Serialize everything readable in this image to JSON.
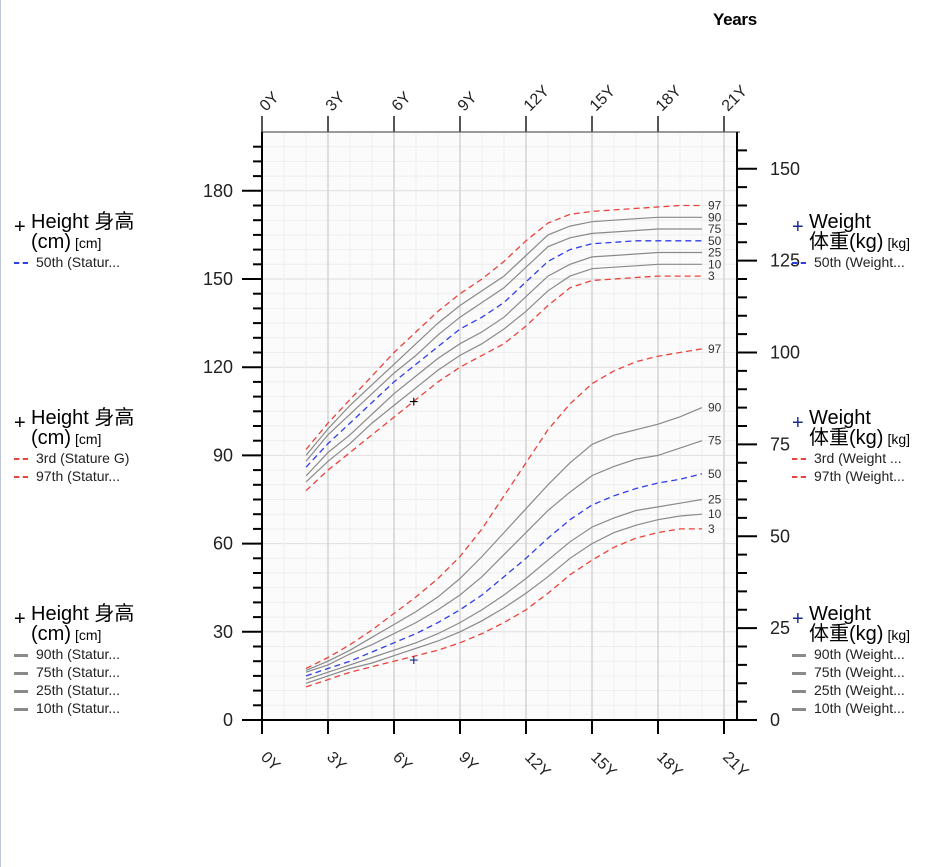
{
  "header": {
    "years_label": "Years"
  },
  "legends": {
    "left": [
      {
        "plus": "+",
        "title1": "Height 身高",
        "title2": "(cm)",
        "unit": "[cm]",
        "items": [
          {
            "label": "50th (Statur...",
            "style": "blue"
          }
        ]
      },
      {
        "plus": "+",
        "title1": "Height 身高",
        "title2": "(cm)",
        "unit": "[cm]",
        "items": [
          {
            "label": "3rd (Stature G)",
            "style": "red"
          },
          {
            "label": "97th (Statur...",
            "style": "red"
          }
        ]
      },
      {
        "plus": "+",
        "title1": "Height 身高",
        "title2": "(cm)",
        "unit": "[cm]",
        "items": [
          {
            "label": "90th (Statur...",
            "style": "grey"
          },
          {
            "label": "75th (Statur...",
            "style": "grey"
          },
          {
            "label": "25th (Statur...",
            "style": "grey"
          },
          {
            "label": "10th (Statur...",
            "style": "grey"
          }
        ]
      }
    ],
    "right": [
      {
        "plus": "+",
        "title1": "Weight",
        "title2": "体重(kg)",
        "unit": "[kg]",
        "items": [
          {
            "label": "50th (Weight...",
            "style": "blue"
          }
        ]
      },
      {
        "plus": "+",
        "title1": "Weight",
        "title2": "体重(kg)",
        "unit": "[kg]",
        "items": [
          {
            "label": "3rd (Weight ...",
            "style": "red"
          },
          {
            "label": "97th (Weight...",
            "style": "red"
          }
        ]
      },
      {
        "plus": "+",
        "title1": "Weight",
        "title2": "体重(kg)",
        "unit": "[kg]",
        "items": [
          {
            "label": "90th (Weight...",
            "style": "grey"
          },
          {
            "label": "75th (Weight...",
            "style": "grey"
          },
          {
            "label": "25th (Weight...",
            "style": "grey"
          },
          {
            "label": "10th (Weight...",
            "style": "grey"
          }
        ]
      }
    ]
  },
  "colors": {
    "red": "#e8443a",
    "blue": "#2f3ee6",
    "grey": "#8a8a8a",
    "grid": "#e6e6e6",
    "axis": "#000000"
  },
  "chart_data": {
    "type": "line",
    "x_axis": {
      "ticks": [
        "0Y",
        "3Y",
        "6Y",
        "9Y",
        "12Y",
        "15Y",
        "18Y",
        "21Y"
      ],
      "tick_values": [
        0,
        3,
        6,
        9,
        12,
        15,
        18,
        21
      ],
      "range": [
        0,
        21.6
      ]
    },
    "y_left": {
      "label": "Height (cm)",
      "range": [
        0,
        200
      ],
      "ticks": [
        0,
        30,
        60,
        90,
        120,
        150,
        180
      ]
    },
    "y_right": {
      "label": "Weight (kg)",
      "range": [
        0,
        160
      ],
      "ticks": [
        0,
        25,
        50,
        75,
        100,
        125,
        150
      ]
    },
    "height_series": [
      {
        "name": "3rd",
        "style": "red",
        "x": [
          2,
          3,
          4,
          5,
          6,
          7,
          8,
          9,
          10,
          11,
          12,
          13,
          14,
          15,
          16,
          17,
          18,
          19,
          20
        ],
        "y": [
          78,
          85,
          91,
          97,
          103,
          109,
          115,
          120,
          124,
          128,
          134,
          141,
          147,
          149.5,
          150,
          150.5,
          151,
          151,
          151
        ]
      },
      {
        "name": "10th",
        "style": "grey",
        "x": [
          2,
          3,
          4,
          5,
          6,
          7,
          8,
          9,
          10,
          11,
          12,
          13,
          14,
          15,
          16,
          17,
          18,
          19,
          20
        ],
        "y": [
          81,
          88,
          94,
          101,
          107,
          113,
          119,
          124,
          128,
          133,
          139,
          146,
          151,
          153.5,
          154,
          154.5,
          155,
          155,
          155
        ]
      },
      {
        "name": "25th",
        "style": "grey",
        "x": [
          2,
          3,
          4,
          5,
          6,
          7,
          8,
          9,
          10,
          11,
          12,
          13,
          14,
          15,
          16,
          17,
          18,
          19,
          20
        ],
        "y": [
          83,
          91,
          97,
          104,
          111,
          117,
          123,
          128,
          132,
          137,
          144,
          151,
          155,
          157.5,
          158,
          158.5,
          159,
          159,
          159
        ]
      },
      {
        "name": "50th",
        "style": "blue",
        "x": [
          2,
          3,
          4,
          5,
          6,
          7,
          8,
          9,
          10,
          11,
          12,
          13,
          14,
          15,
          16,
          17,
          18,
          19,
          20
        ],
        "y": [
          86,
          94,
          101,
          108,
          115,
          121,
          127,
          133,
          137,
          142,
          149,
          156,
          160,
          162,
          162.5,
          163,
          163,
          163,
          163
        ]
      },
      {
        "name": "75th",
        "style": "grey",
        "x": [
          2,
          3,
          4,
          5,
          6,
          7,
          8,
          9,
          10,
          11,
          12,
          13,
          14,
          15,
          16,
          17,
          18,
          19,
          20
        ],
        "y": [
          88,
          97,
          104,
          111,
          118,
          124,
          131,
          137,
          142,
          147,
          154,
          161,
          164,
          165.5,
          166,
          166.5,
          167,
          167,
          167
        ]
      },
      {
        "name": "90th",
        "style": "grey",
        "x": [
          2,
          3,
          4,
          5,
          6,
          7,
          8,
          9,
          10,
          11,
          12,
          13,
          14,
          15,
          16,
          17,
          18,
          19,
          20
        ],
        "y": [
          90,
          99,
          107,
          114,
          121,
          128,
          135,
          141,
          146,
          151,
          158,
          165,
          168,
          169.5,
          170,
          170.5,
          171,
          171,
          171
        ]
      },
      {
        "name": "97th",
        "style": "red",
        "x": [
          2,
          3,
          4,
          5,
          6,
          7,
          8,
          9,
          10,
          11,
          12,
          13,
          14,
          15,
          16,
          17,
          18,
          19,
          20
        ],
        "y": [
          92,
          101,
          109,
          117,
          125,
          132,
          139,
          145,
          150,
          156,
          163,
          169,
          172,
          173,
          173.5,
          174,
          174.5,
          175,
          175
        ]
      }
    ],
    "height_end_labels": [
      "97",
      "90",
      "75",
      "50",
      "25",
      "10",
      "3"
    ],
    "weight_series": [
      {
        "name": "3rd",
        "style": "red",
        "x": [
          2,
          3,
          4,
          5,
          6,
          7,
          8,
          9,
          10,
          11,
          12,
          13,
          14,
          15,
          16,
          17,
          18,
          19,
          20
        ],
        "y": [
          9,
          11,
          13,
          14.5,
          16,
          17.5,
          19,
          21,
          23.5,
          26.5,
          30,
          34.5,
          39.5,
          43.5,
          47,
          49.5,
          51,
          52,
          52
        ]
      },
      {
        "name": "10th",
        "style": "grey",
        "x": [
          2,
          3,
          4,
          5,
          6,
          7,
          8,
          9,
          10,
          11,
          12,
          13,
          14,
          15,
          16,
          17,
          18,
          19,
          20
        ],
        "y": [
          10,
          12,
          14,
          15.5,
          17.5,
          19.5,
          21.5,
          24,
          27,
          30.5,
          34.5,
          39,
          44,
          48,
          51,
          53,
          54.5,
          55.5,
          56
        ]
      },
      {
        "name": "25th",
        "style": "grey",
        "x": [
          2,
          3,
          4,
          5,
          6,
          7,
          8,
          9,
          10,
          11,
          12,
          13,
          14,
          15,
          16,
          17,
          18,
          19,
          20
        ],
        "y": [
          11,
          13,
          15,
          17,
          19,
          21,
          23.5,
          26.5,
          30,
          34,
          38.5,
          43.5,
          48.5,
          52.5,
          55,
          57,
          58,
          59,
          60
        ]
      },
      {
        "name": "50th",
        "style": "blue",
        "x": [
          2,
          3,
          4,
          5,
          6,
          7,
          8,
          9,
          10,
          11,
          12,
          13,
          14,
          15,
          16,
          17,
          18,
          19,
          20
        ],
        "y": [
          12,
          14,
          16,
          18.5,
          21,
          23.5,
          26.5,
          30,
          34,
          39,
          44,
          49.5,
          54.5,
          58.5,
          61,
          63,
          64.5,
          65.5,
          67
        ]
      },
      {
        "name": "75th",
        "style": "grey",
        "x": [
          2,
          3,
          4,
          5,
          6,
          7,
          8,
          9,
          10,
          11,
          12,
          13,
          14,
          15,
          16,
          17,
          18,
          19,
          20
        ],
        "y": [
          13,
          15,
          18,
          20.5,
          23.5,
          26.5,
          30,
          34,
          39,
          45,
          51,
          57,
          62,
          66.5,
          69,
          71,
          72,
          74,
          76
        ]
      },
      {
        "name": "90th",
        "style": "grey",
        "x": [
          2,
          3,
          4,
          5,
          6,
          7,
          8,
          9,
          10,
          11,
          12,
          13,
          14,
          15,
          16,
          17,
          18,
          19,
          20
        ],
        "y": [
          13.5,
          16,
          19,
          22.5,
          26,
          29.5,
          33.5,
          38.5,
          44.5,
          51,
          57.5,
          64,
          70,
          75,
          77.5,
          79,
          80.5,
          82.5,
          85
        ]
      },
      {
        "name": "97th",
        "style": "red",
        "x": [
          2,
          3,
          4,
          5,
          6,
          7,
          8,
          9,
          10,
          11,
          12,
          13,
          14,
          15,
          16,
          17,
          18,
          19,
          20
        ],
        "y": [
          14,
          17,
          20.5,
          24.5,
          29,
          33.5,
          38.5,
          44.5,
          52,
          61,
          70,
          79,
          86,
          91.5,
          95,
          97.5,
          99,
          100,
          101
        ]
      }
    ],
    "weight_end_labels": [
      "97",
      "90",
      "75",
      "50",
      "25",
      "10",
      "3"
    ],
    "measurement_marks": [
      {
        "axis": "left",
        "x": 6.9,
        "y": 108.5,
        "symbol": "+",
        "color": "#000000"
      },
      {
        "axis": "right",
        "x": 6.9,
        "y": 16.5,
        "symbol": "+",
        "color": "#1a2b8c"
      }
    ],
    "grid": true
  }
}
